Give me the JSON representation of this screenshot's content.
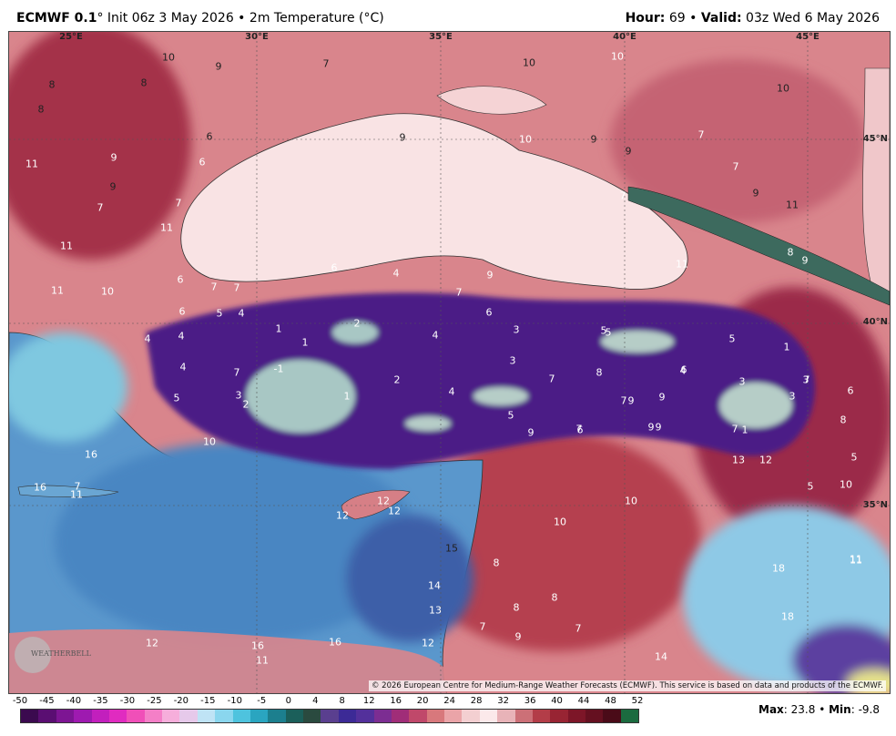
{
  "header": {
    "model": "ECMWF 0.1",
    "degree_mark": "°",
    "init": "Init 06z 3 May 2026",
    "variable": "2m Temperature (°C)",
    "hour_label": "Hour:",
    "hour": "69",
    "valid_label": "Valid:",
    "valid": "03z Wed 6 May 2026"
  },
  "map": {
    "lon_labels": [
      "25°E",
      "30°E",
      "35°E",
      "40°E",
      "45°E"
    ],
    "lat_labels": [
      "45°N",
      "40°N",
      "35°N"
    ],
    "values": [
      "10",
      "9",
      "8",
      "8",
      "8",
      "7",
      "10",
      "10",
      "10",
      "9",
      "10",
      "7",
      "9",
      "6",
      "11",
      "9",
      "6",
      "7",
      "9",
      "7",
      "7",
      "9",
      "9",
      "11",
      "7",
      "11",
      "11",
      "8",
      "9",
      "6",
      "4",
      "9",
      "11",
      "7",
      "7",
      "6",
      "11",
      "10",
      "4",
      "6",
      "7",
      "3",
      "2",
      "6",
      "5",
      "4",
      "1",
      "2",
      "3",
      "5",
      "1",
      "4",
      "7",
      "5",
      "1",
      "6",
      "4",
      "4",
      "3",
      "5",
      "5",
      "3",
      "-1",
      "3",
      "4",
      "8",
      "7",
      "4",
      "3",
      "2",
      "1",
      "6",
      "7",
      "1",
      "7",
      "9",
      "9",
      "8",
      "5",
      "9",
      "9",
      "7",
      "10",
      "16",
      "9",
      "6",
      "7",
      "7",
      "5",
      "13",
      "12",
      "16",
      "11",
      "12",
      "10",
      "12",
      "12",
      "11",
      "10",
      "10",
      "15",
      "18",
      "14",
      "8",
      "8",
      "18",
      "13",
      "8",
      "7",
      "16",
      "16",
      "11",
      "12",
      "12",
      "7",
      "9",
      "14",
      "11",
      "5"
    ],
    "copyright": "© 2026 European Centre for Medium-Range Weather Forecasts (ECMWF). This service is based on data and products of the ECMWF.",
    "logo_text": "WEATHERBELL"
  },
  "colorbar": {
    "ticks": [
      "-50",
      "-45",
      "-40",
      "-35",
      "-30",
      "-25",
      "-20",
      "-15",
      "-10",
      "-5",
      "0",
      "4",
      "8",
      "12",
      "16",
      "20",
      "24",
      "28",
      "32",
      "36",
      "40",
      "44",
      "48",
      "52"
    ],
    "colors": [
      "#3b0a4f",
      "#5a0e72",
      "#7d1593",
      "#9e1ab0",
      "#c21fbd",
      "#e02bc0",
      "#f04fb8",
      "#f47fc7",
      "#f6aedb",
      "#e6c9ea",
      "#bfe3f5",
      "#8ad6ee",
      "#4ec3de",
      "#2aa5c0",
      "#1c7f8e",
      "#1b5f5a",
      "#2a4a3f",
      "#5a3f8f",
      "#3c2a96",
      "#53309b",
      "#7c2d92",
      "#a02d78",
      "#c0486a",
      "#d8787c",
      "#eaa4a8",
      "#f3cfd1",
      "#fbe9ea",
      "#e8b3b8",
      "#cc7077",
      "#b33d48",
      "#982433",
      "#7d1628",
      "#651020",
      "#4a0b18",
      "#1b6b3f"
    ]
  },
  "stats": {
    "max_label": "Max",
    "max": "23.8",
    "sep": "•",
    "min_label": "Min",
    "min": "-9.8"
  }
}
